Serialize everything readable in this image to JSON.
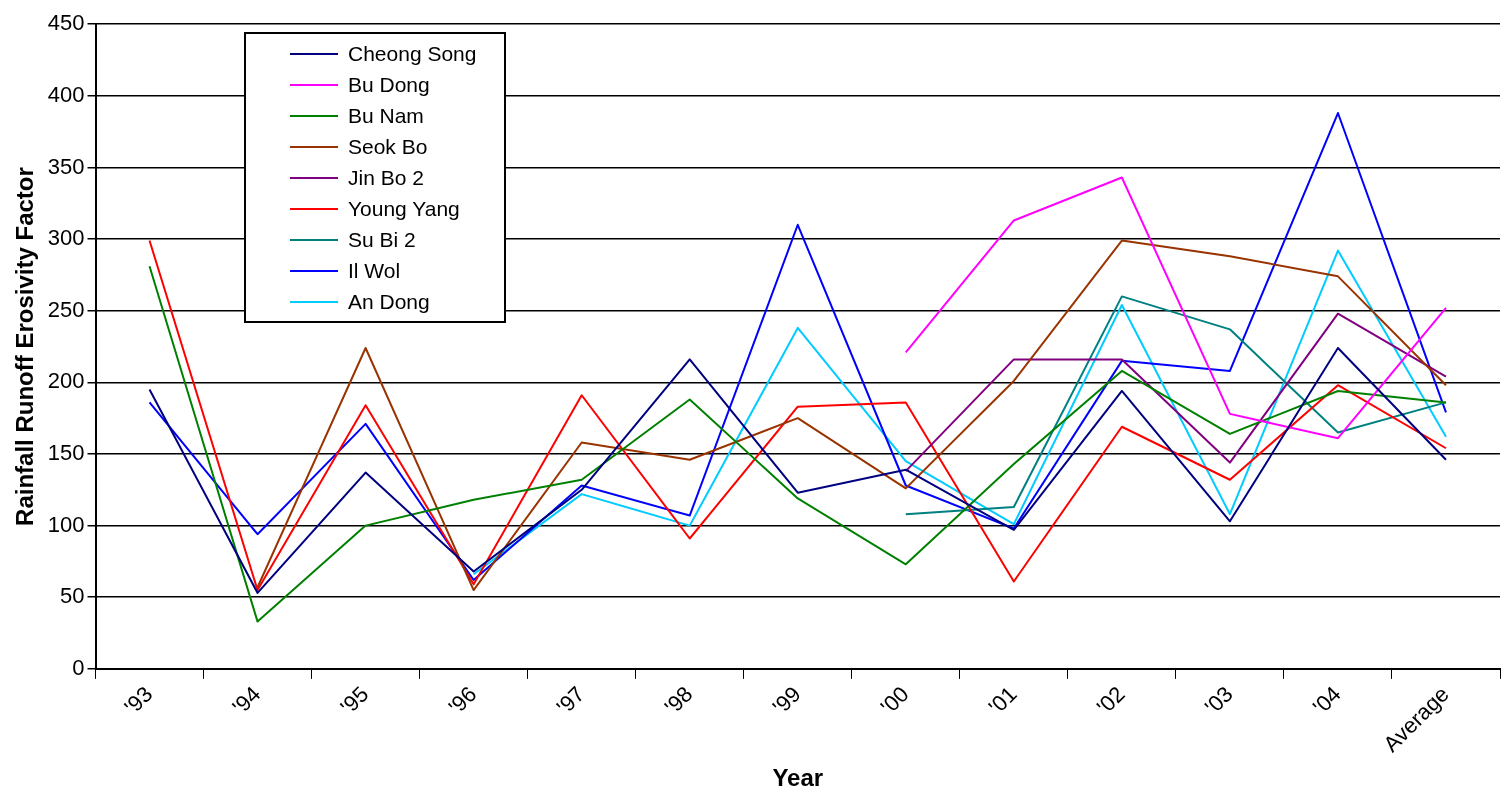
{
  "chart_data": {
    "type": "line",
    "xlabel": "Year",
    "ylabel": "Rainfall Runoff Erosivity Factor",
    "categories": [
      "'93",
      "'94",
      "'95",
      "'96",
      "'97",
      "'98",
      "'99",
      "'00",
      "'01",
      "'02",
      "'03",
      "'04",
      "Average"
    ],
    "ylim": [
      0,
      450
    ],
    "yticks": [
      0,
      50,
      100,
      150,
      200,
      250,
      300,
      350,
      400,
      450
    ],
    "grid": "y",
    "legend": "top left",
    "marker": "none",
    "line_style": "solid",
    "series": [
      {
        "name": "Cheong Song",
        "color": "#000080",
        "values": [
          195,
          53,
          137,
          68,
          125,
          216,
          123,
          139,
          97,
          194,
          103,
          224,
          146
        ]
      },
      {
        "name": "Bu Dong",
        "color": "#ff00ff",
        "values": [
          null,
          null,
          null,
          null,
          null,
          null,
          null,
          221,
          313,
          343,
          178,
          161,
          252
        ]
      },
      {
        "name": "Bu Nam",
        "color": "#008000",
        "values": [
          281,
          33,
          100,
          118,
          132,
          188,
          119,
          73,
          143,
          208,
          164,
          194,
          186
        ]
      },
      {
        "name": "Seok Bo",
        "color": "#993300",
        "values": [
          null,
          57,
          224,
          55,
          158,
          146,
          175,
          126,
          201,
          299,
          288,
          274,
          198
        ]
      },
      {
        "name": "Jin Bo 2",
        "color": "#800080",
        "values": [
          null,
          null,
          null,
          null,
          null,
          null,
          null,
          138,
          216,
          216,
          144,
          248,
          204
        ]
      },
      {
        "name": "Young Yang",
        "color": "#ff0000",
        "values": [
          299,
          55,
          184,
          59,
          191,
          91,
          183,
          186,
          61,
          169,
          132,
          198,
          154
        ]
      },
      {
        "name": "Su Bi 2",
        "color": "#008080",
        "values": [
          null,
          null,
          null,
          null,
          null,
          null,
          null,
          108,
          113,
          260,
          237,
          165,
          186
        ]
      },
      {
        "name": "Il Wol",
        "color": "#0000ff",
        "values": [
          186,
          94,
          171,
          62,
          128,
          107,
          310,
          128,
          98,
          215,
          208,
          388,
          179
        ]
      },
      {
        "name": "An Dong",
        "color": "#00ccff",
        "values": [
          null,
          null,
          null,
          66,
          122,
          100,
          238,
          145,
          101,
          254,
          108,
          292,
          162
        ]
      }
    ]
  }
}
